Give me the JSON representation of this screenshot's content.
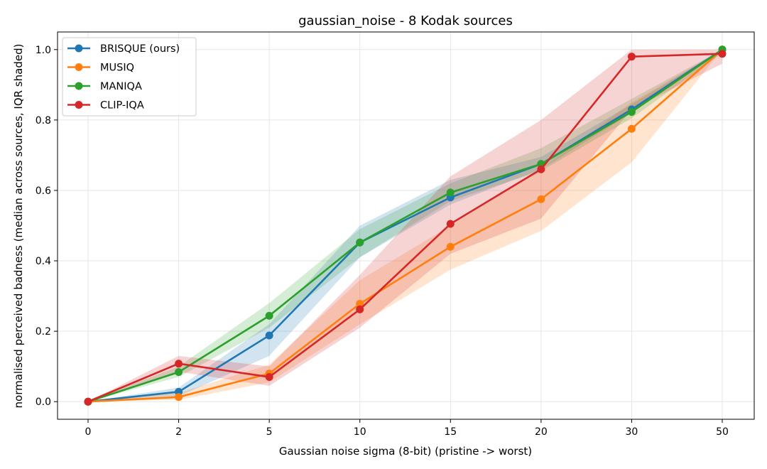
{
  "chart_data": {
    "type": "line",
    "title": "gaussian_noise - 8 Kodak sources",
    "xlabel": "Gaussian noise sigma (8-bit)  (pristine -> worst)",
    "ylabel": "normalised perceived badness  (median across sources, IQR shaded)",
    "x": [
      "0",
      "2",
      "5",
      "10",
      "15",
      "20",
      "30",
      "50"
    ],
    "ylim": [
      -0.05,
      1.05
    ],
    "yticks": [
      "0.0",
      "0.2",
      "0.4",
      "0.6",
      "0.8",
      "1.0"
    ],
    "grid": true,
    "legend_position": "top-left",
    "series": [
      {
        "name": "BRISQUE (ours)",
        "color": "#1f77b4",
        "values": [
          0.0,
          0.028,
          0.188,
          0.452,
          0.58,
          0.675,
          0.83,
          1.0
        ],
        "q1": [
          0.0,
          0.015,
          0.13,
          0.41,
          0.56,
          0.66,
          0.82,
          1.0
        ],
        "q3": [
          0.0,
          0.04,
          0.22,
          0.5,
          0.63,
          0.695,
          0.845,
          1.0
        ]
      },
      {
        "name": "MUSIQ",
        "color": "#ff7f0e",
        "values": [
          0.0,
          0.013,
          0.08,
          0.278,
          0.44,
          0.575,
          0.775,
          1.0
        ],
        "q1": [
          0.0,
          0.005,
          0.055,
          0.22,
          0.375,
          0.485,
          0.68,
          1.0
        ],
        "q3": [
          0.0,
          0.025,
          0.105,
          0.345,
          0.5,
          0.66,
          0.85,
          1.0
        ]
      },
      {
        "name": "MANIQA",
        "color": "#2ca02c",
        "values": [
          0.0,
          0.084,
          0.244,
          0.452,
          0.594,
          0.675,
          0.823,
          1.0
        ],
        "q1": [
          0.0,
          0.07,
          0.21,
          0.41,
          0.57,
          0.655,
          0.805,
          0.99
        ],
        "q3": [
          0.0,
          0.1,
          0.28,
          0.49,
          0.62,
          0.72,
          0.86,
          1.0
        ]
      },
      {
        "name": "CLIP-IQA",
        "color": "#d62728",
        "values": [
          0.0,
          0.108,
          0.07,
          0.262,
          0.505,
          0.66,
          0.98,
          0.988
        ],
        "q1": [
          0.0,
          0.085,
          0.045,
          0.21,
          0.42,
          0.52,
          0.83,
          0.96
        ],
        "q3": [
          0.0,
          0.13,
          0.1,
          0.36,
          0.64,
          0.8,
          1.0,
          1.0
        ]
      }
    ]
  }
}
